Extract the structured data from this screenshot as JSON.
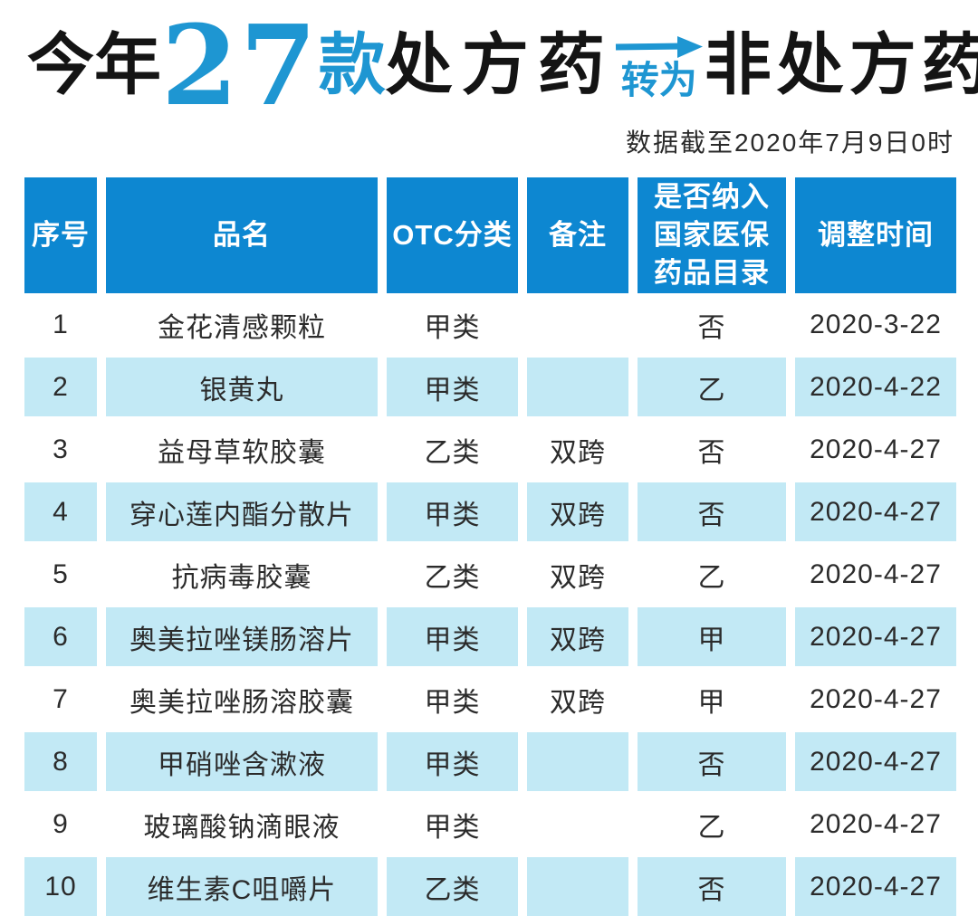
{
  "colors": {
    "header_blue": "#0d87d1",
    "row_stripe_blue": "#c2e9f5",
    "title_blue": "#1e96d2",
    "title_black": "#141414"
  },
  "title": {
    "prefix": "今年",
    "count": "27",
    "count_unit": "款",
    "rx_text": "处方药",
    "arrow_label": "转为",
    "otc_text": "非处方药",
    "subtitle": "数据截至2020年7月9日0时"
  },
  "table": {
    "headers": [
      "序号",
      "品名",
      "OTC分类",
      "备注",
      "是否纳入\n国家医保\n药品目录",
      "调整时间"
    ],
    "rows": [
      {
        "cells": [
          "1",
          "金花清感颗粒",
          "甲类",
          "",
          "否",
          "2020-3-22"
        ]
      },
      {
        "cells": [
          "2",
          "银黄丸",
          "甲类",
          "",
          "乙",
          "2020-4-22"
        ]
      },
      {
        "cells": [
          "3",
          "益母草软胶囊",
          "乙类",
          "双跨",
          "否",
          "2020-4-27"
        ]
      },
      {
        "cells": [
          "4",
          "穿心莲内酯分散片",
          "甲类",
          "双跨",
          "否",
          "2020-4-27"
        ]
      },
      {
        "cells": [
          "5",
          "抗病毒胶囊",
          "乙类",
          "双跨",
          "乙",
          "2020-4-27"
        ]
      },
      {
        "cells": [
          "6",
          "奥美拉唑镁肠溶片",
          "甲类",
          "双跨",
          "甲",
          "2020-4-27"
        ]
      },
      {
        "cells": [
          "7",
          "奥美拉唑肠溶胶囊",
          "甲类",
          "双跨",
          "甲",
          "2020-4-27"
        ]
      },
      {
        "cells": [
          "8",
          "甲硝唑含漱液",
          "甲类",
          "",
          "否",
          "2020-4-27"
        ]
      },
      {
        "cells": [
          "9",
          "玻璃酸钠滴眼液",
          "甲类",
          "",
          "乙",
          "2020-4-27"
        ]
      },
      {
        "cells": [
          "10",
          "维生素C咀嚼片",
          "乙类",
          "",
          "否",
          "2020-4-27"
        ]
      }
    ]
  }
}
